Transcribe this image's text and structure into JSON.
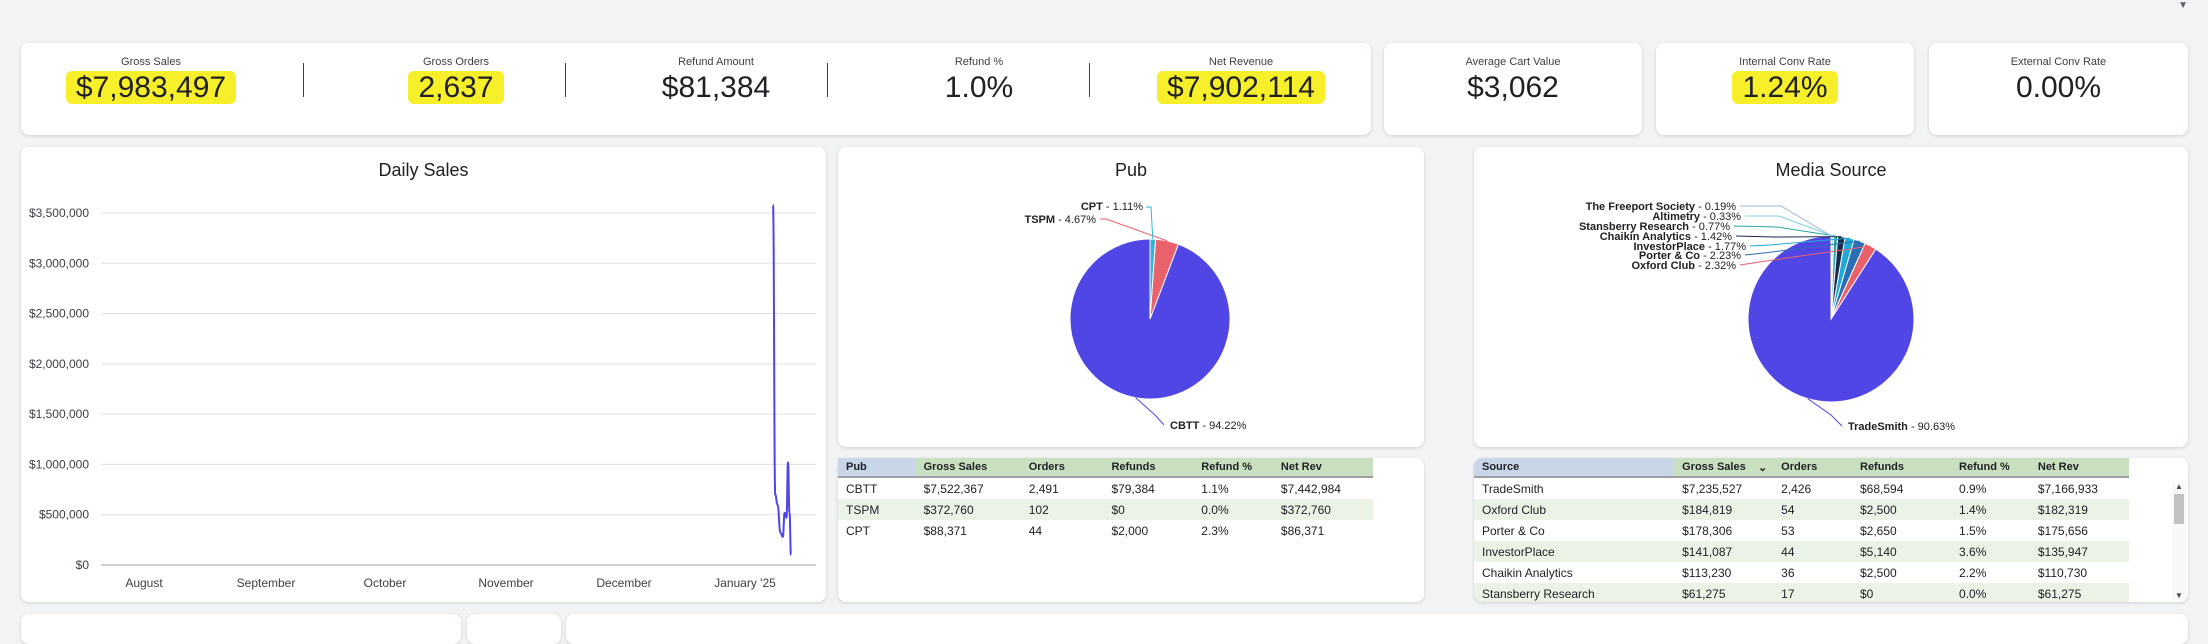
{
  "kpis_main": [
    {
      "label": "Gross Sales",
      "value": "$7,983,497",
      "highlight": true
    },
    {
      "label": "Gross Orders",
      "value": "2,637",
      "highlight": true
    },
    {
      "label": "Refund Amount",
      "value": "$81,384",
      "highlight": false
    },
    {
      "label": "Refund %",
      "value": "1.0%",
      "highlight": false
    },
    {
      "label": "Net Revenue",
      "value": "$7,902,114",
      "highlight": true
    }
  ],
  "kpi_cart": {
    "label": "Average Cart Value",
    "value": "$3,062"
  },
  "kpi_internal": {
    "label": "Internal Conv Rate",
    "value": "1.24%",
    "highlight": true
  },
  "kpi_external": {
    "label": "External Conv Rate",
    "value": "0.00%"
  },
  "highlight_color": "#f7ef2a",
  "daily_sales": {
    "title": "Daily Sales",
    "chart_data": {
      "type": "line",
      "title": "Daily Sales",
      "yticks": [
        "$3,500,000",
        "$3,000,000",
        "$2,500,000",
        "$2,000,000",
        "$1,500,000",
        "$1,000,000",
        "$500,000",
        "$0"
      ],
      "ylim": [
        0,
        3500000
      ],
      "xticks": [
        "August",
        "September",
        "October",
        "November",
        "December",
        "January '25"
      ],
      "series": [
        {
          "color": "#4f46e5",
          "points": [
            [
              0,
              3580000
            ],
            [
              0.15,
              700000
            ],
            [
              0.3,
              600000
            ],
            [
              0.5,
              320000
            ],
            [
              0.65,
              280000
            ],
            [
              0.78,
              520000
            ],
            [
              0.9,
              470000
            ],
            [
              1.0,
              1020000
            ],
            [
              1.1,
              520000
            ],
            [
              1.2,
              100000
            ]
          ]
        }
      ]
    }
  },
  "pub": {
    "title": "Pub",
    "chart_data": {
      "type": "pie",
      "slices": [
        {
          "label": "CBTT",
          "pct": "94.22%",
          "value": 94.22,
          "color": "#5046e5"
        },
        {
          "label": "TSPM",
          "pct": "4.67%",
          "value": 4.67,
          "color": "#e8616b"
        },
        {
          "label": "CPT",
          "pct": "1.11%",
          "value": 1.11,
          "color": "#36b2d6"
        }
      ]
    },
    "table": {
      "headers": [
        "Pub",
        "Gross Sales",
        "Orders",
        "Refunds",
        "Refund %",
        "Net Rev"
      ],
      "rows": [
        [
          "CBTT",
          "$7,522,367",
          "2,491",
          "$79,384",
          "1.1%",
          "$7,442,984"
        ],
        [
          "TSPM",
          "$372,760",
          "102",
          "$0",
          "0.0%",
          "$372,760"
        ],
        [
          "CPT",
          "$88,371",
          "44",
          "$2,000",
          "2.3%",
          "$86,371"
        ]
      ]
    }
  },
  "media": {
    "title": "Media Source",
    "chart_data": {
      "type": "pie",
      "slices": [
        {
          "label": "TradeSmith",
          "pct": "90.63%",
          "value": 90.63,
          "color": "#5046e5"
        },
        {
          "label": "Oxford Club",
          "pct": "2.32%",
          "value": 2.32,
          "color": "#e8616b"
        },
        {
          "label": "Porter & Co",
          "pct": "2.23%",
          "value": 2.23,
          "color": "#2b6fb3"
        },
        {
          "label": "InvestorPlace",
          "pct": "1.77%",
          "value": 1.77,
          "color": "#1fa9d6"
        },
        {
          "label": "Chaikin Analytics",
          "pct": "1.42%",
          "value": 1.42,
          "color": "#1b2a4a"
        },
        {
          "label": "Stansberry Research",
          "pct": "0.77%",
          "value": 0.77,
          "color": "#2aa6a0"
        },
        {
          "label": "Altimetry",
          "pct": "0.33%",
          "value": 0.33,
          "color": "#7fd3e0"
        },
        {
          "label": "The Freeport Society",
          "pct": "0.19%",
          "value": 0.19,
          "color": "#9bb7d4"
        }
      ]
    },
    "table": {
      "headers": [
        "Source",
        "Gross Sales",
        "Orders",
        "Refunds",
        "Refund %",
        "Net Rev"
      ],
      "rows": [
        [
          "TradeSmith",
          "$7,235,527",
          "2,426",
          "$68,594",
          "0.9%",
          "$7,166,933"
        ],
        [
          "Oxford Club",
          "$184,819",
          "54",
          "$2,500",
          "1.4%",
          "$182,319"
        ],
        [
          "Porter & Co",
          "$178,306",
          "53",
          "$2,650",
          "1.5%",
          "$175,656"
        ],
        [
          "InvestorPlace",
          "$141,087",
          "44",
          "$5,140",
          "3.6%",
          "$135,947"
        ],
        [
          "Chaikin Analytics",
          "$113,230",
          "36",
          "$2,500",
          "2.2%",
          "$110,730"
        ],
        [
          "Stansberry Research",
          "$61,275",
          "17",
          "$0",
          "0.0%",
          "$61,275"
        ]
      ]
    }
  }
}
